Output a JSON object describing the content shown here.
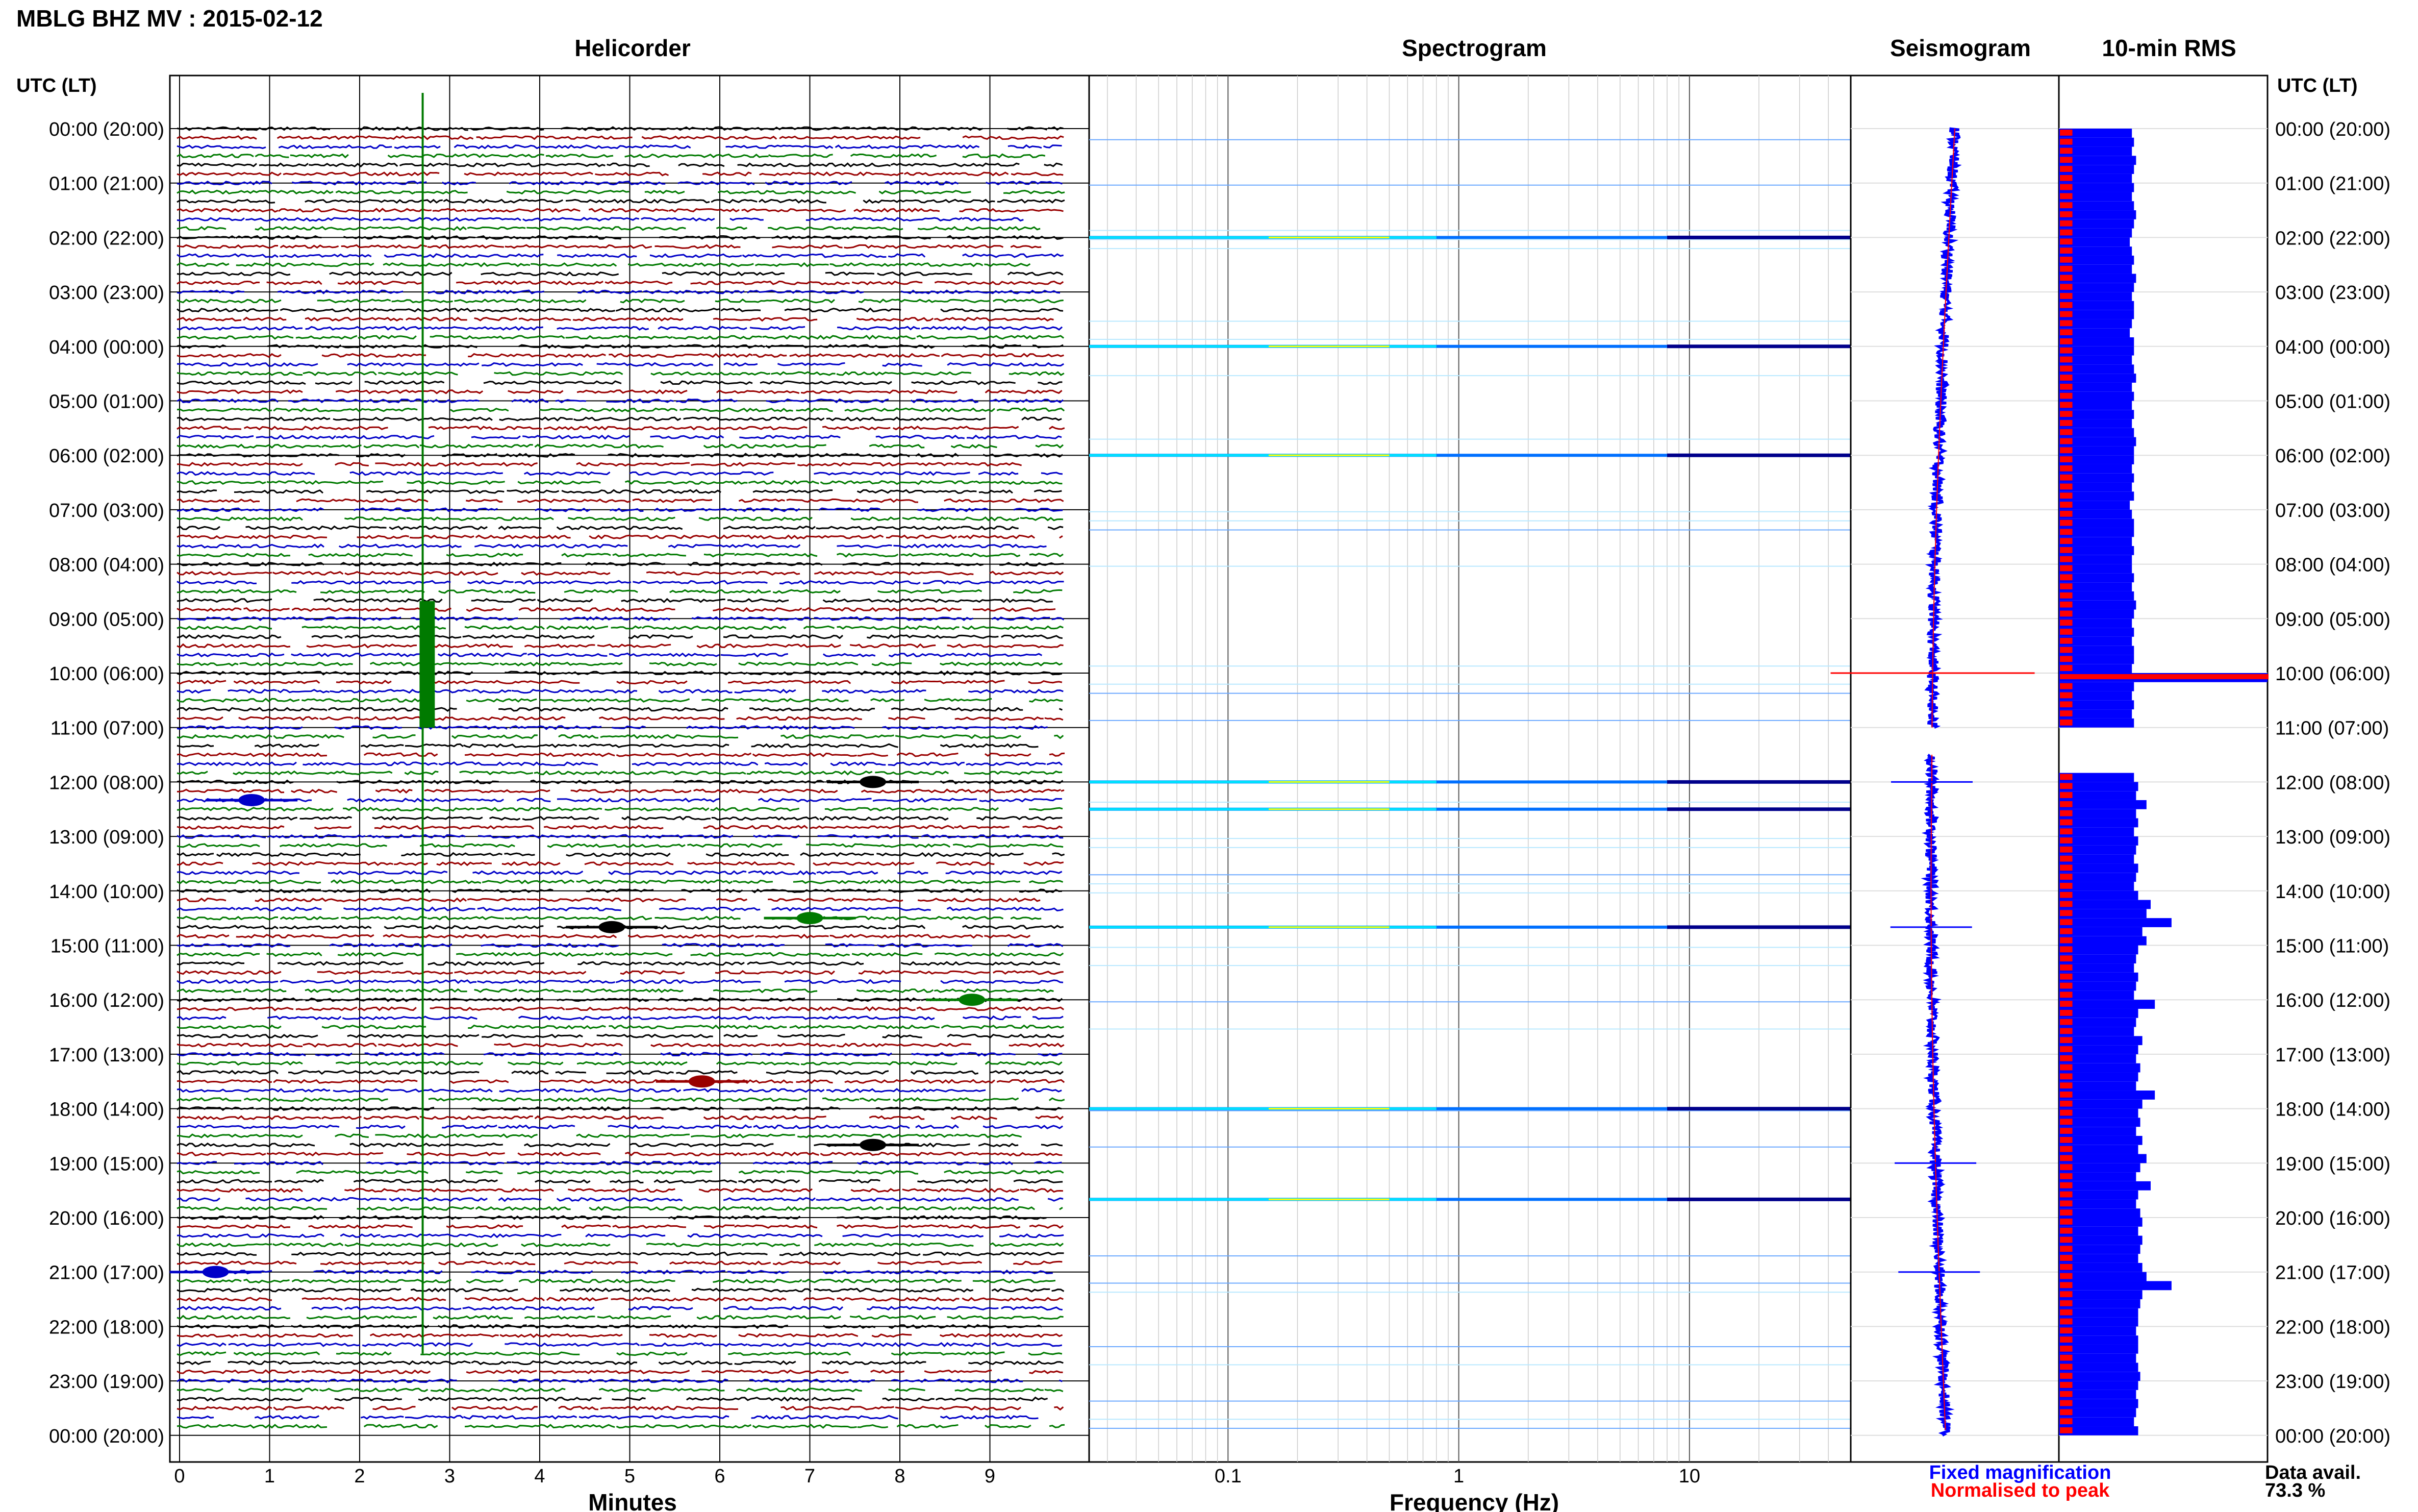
{
  "title": "MBLG BHZ MV : 2015-02-12",
  "time_axis_label": "UTC (LT)",
  "hour_labels": [
    "00:00 (20:00)",
    "01:00 (21:00)",
    "02:00 (22:00)",
    "03:00 (23:00)",
    "04:00 (00:00)",
    "05:00 (01:00)",
    "06:00 (02:00)",
    "07:00 (03:00)",
    "08:00 (04:00)",
    "09:00 (05:00)",
    "10:00 (06:00)",
    "11:00 (07:00)",
    "12:00 (08:00)",
    "13:00 (09:00)",
    "14:00 (10:00)",
    "15:00 (11:00)",
    "16:00 (12:00)",
    "17:00 (13:00)",
    "18:00 (14:00)",
    "19:00 (15:00)",
    "20:00 (16:00)",
    "21:00 (17:00)",
    "22:00 (18:00)",
    "23:00 (19:00)",
    "00:00 (20:00)"
  ],
  "colors": {
    "black": "#000000",
    "red": "#990000",
    "blue": "#0000c8",
    "green": "#007a00",
    "rms_blue": "#0000ff",
    "rms_red": "#ff0000",
    "spec_dark": "#00008b",
    "spec_mid": "#0070ff",
    "spec_cyan": "#00e0ff",
    "spec_yellow": "#ffff00"
  },
  "chart_data": [
    {
      "type": "line",
      "title": "Helicorder",
      "xlabel": "Minutes",
      "x_ticks": [
        "0",
        "1",
        "2",
        "3",
        "4",
        "5",
        "6",
        "7",
        "8",
        "9"
      ],
      "xlim": [
        0,
        10
      ],
      "rows_per_hour": 6,
      "row_colors": [
        "black",
        "red",
        "blue",
        "green"
      ],
      "events": [
        {
          "time_utc": "00:00-22:30",
          "minute": 2.7,
          "series": "green",
          "note": "long-period transient"
        },
        {
          "time_utc": "09:20-11:00",
          "minute": 2.75,
          "series": "green"
        },
        {
          "time_utc": "12:00",
          "minute": 7.7,
          "series": "black"
        },
        {
          "time_utc": "12:20",
          "minute": 0.8,
          "series": "blue"
        },
        {
          "time_utc": "14:30",
          "minute": 7.0,
          "series": "green"
        },
        {
          "time_utc": "14:40",
          "minute": 4.8,
          "series": "black"
        },
        {
          "time_utc": "16:00",
          "minute": 8.8,
          "series": "green"
        },
        {
          "time_utc": "17:30",
          "minute": 5.8,
          "series": "red"
        },
        {
          "time_utc": "18:40",
          "minute": 7.7,
          "series": "black"
        },
        {
          "time_utc": "21:00",
          "minute": 0.4,
          "series": "blue"
        }
      ]
    },
    {
      "type": "heatmap",
      "title": "Spectrogram",
      "xlabel": "Frequency (Hz)",
      "x_scale": "log",
      "xlim": [
        0.025,
        50
      ],
      "x_tick_labels": [
        "0.1",
        "1",
        "10"
      ],
      "strong_rows_utc": [
        "02:00",
        "04:00",
        "06:00",
        "12:00",
        "12:30",
        "14:40",
        "18:00",
        "19:40"
      ]
    },
    {
      "type": "line",
      "title": "Seismogram",
      "series": [
        {
          "name": "Fixed magnification"
        },
        {
          "name": "Normalised to peak"
        }
      ],
      "events_utc": [
        "10:00",
        "12:00",
        "14:40",
        "19:00",
        "21:00"
      ]
    },
    {
      "type": "bar",
      "title": "10-min RMS",
      "values_per_10min_relative": [
        0.35,
        0.36,
        0.35,
        0.37,
        0.36,
        0.35,
        0.36,
        0.35,
        0.36,
        0.37,
        0.36,
        0.35,
        0.34,
        0.35,
        0.36,
        0.35,
        0.37,
        0.36,
        0.35,
        0.36,
        0.36,
        0.35,
        0.34,
        0.36,
        0.36,
        0.35,
        0.36,
        0.37,
        0.35,
        0.36,
        0.35,
        0.36,
        0.35,
        0.36,
        0.37,
        0.36,
        0.36,
        0.35,
        0.36,
        0.35,
        0.36,
        0.34,
        0.35,
        0.36,
        0.36,
        0.35,
        0.36,
        0.35,
        0.35,
        0.36,
        0.35,
        0.36,
        0.37,
        0.36,
        0.35,
        0.36,
        0.35,
        0.36,
        0.36,
        0.35,
        1.0,
        0.36,
        0.35,
        0.36,
        0.35,
        0.36,
        0.0,
        0.0,
        0.0,
        0.0,
        0.0,
        0.36,
        0.38,
        0.37,
        0.42,
        0.37,
        0.38,
        0.36,
        0.38,
        0.37,
        0.36,
        0.38,
        0.37,
        0.36,
        0.38,
        0.44,
        0.42,
        0.54,
        0.4,
        0.42,
        0.38,
        0.37,
        0.36,
        0.38,
        0.37,
        0.36,
        0.46,
        0.38,
        0.37,
        0.36,
        0.4,
        0.38,
        0.37,
        0.39,
        0.38,
        0.37,
        0.46,
        0.4,
        0.38,
        0.39,
        0.37,
        0.4,
        0.38,
        0.42,
        0.39,
        0.37,
        0.44,
        0.38,
        0.37,
        0.39,
        0.4,
        0.38,
        0.4,
        0.39,
        0.38,
        0.4,
        0.42,
        0.54,
        0.4,
        0.39,
        0.38,
        0.38,
        0.37,
        0.38,
        0.38,
        0.37,
        0.38,
        0.39,
        0.38,
        0.37,
        0.38,
        0.37,
        0.36,
        0.38
      ],
      "normalised_marker_relative": 0.06,
      "peak_interval_utc": "10:00"
    }
  ],
  "legend": {
    "fixed": "Fixed magnification",
    "normalised": "Normalised to peak"
  },
  "data_avail_label": "Data avail.",
  "data_avail_value": "73.3 %"
}
